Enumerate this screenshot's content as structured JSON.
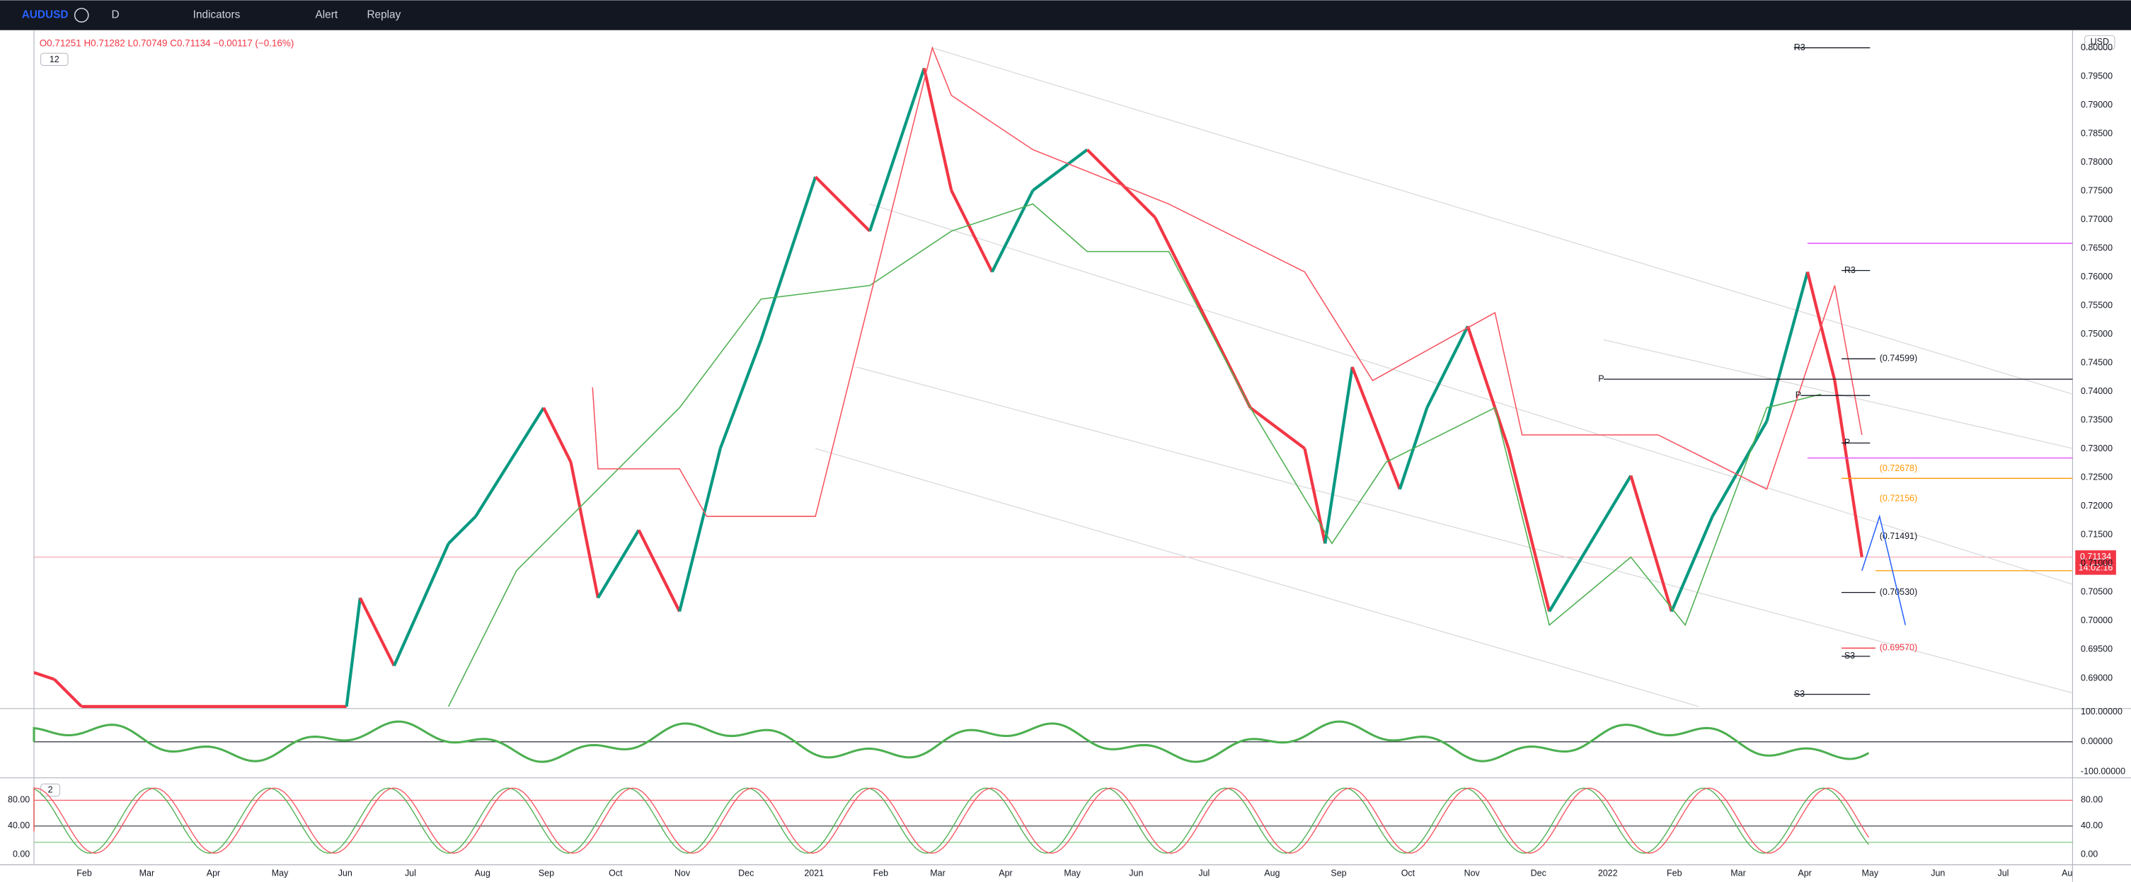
{
  "toolbar": {
    "symbol": "AUDUSD",
    "interval": "D",
    "indicators": "Indicators",
    "alert": "Alert",
    "replay": "Replay"
  },
  "legend": {
    "ohlc": "O0.71251 H0.71282 L0.70749 C0.71134 −0.00117 (−0.16%)",
    "indicator_count": "12"
  },
  "price_axis": {
    "currency": "USD",
    "labels": [
      "0.80000",
      "0.79500",
      "0.79000",
      "0.78500",
      "0.78000",
      "0.77500",
      "0.77000",
      "0.76500",
      "0.76000",
      "0.75500",
      "0.75000",
      "0.74500",
      "0.74000",
      "0.73500",
      "0.73000",
      "0.72500",
      "0.72000",
      "0.71500",
      "0.71000",
      "0.70500",
      "0.70000",
      "0.69500",
      "0.69000"
    ],
    "last_price": "0.71134",
    "countdown": "14:02:16"
  },
  "levels": {
    "pivots": [
      "R3",
      "R3",
      "P",
      "P",
      "P",
      "S3",
      "S3"
    ],
    "prices": [
      "(0.74599)",
      "(0.72678)",
      "(0.72156)",
      "(0.71491)",
      "(0.70530)",
      "(0.69570)"
    ]
  },
  "panel1": {
    "labels": [
      "100.00000",
      "0.00000",
      "-100.00000"
    ]
  },
  "panel2": {
    "badge": "2",
    "labels": [
      "80.00",
      "40.00",
      "0.00"
    ]
  },
  "time_axis": {
    "labels": [
      "Feb",
      "Mar",
      "Apr",
      "May",
      "Jun",
      "Jul",
      "Aug",
      "Sep",
      "Oct",
      "Nov",
      "Dec",
      "2021",
      "Feb",
      "Mar",
      "Apr",
      "May",
      "Jun",
      "Jul",
      "Aug",
      "Sep",
      "Oct",
      "Nov",
      "Dec",
      "2022",
      "Feb",
      "Mar",
      "Apr",
      "May",
      "Jun",
      "Jul",
      "Au"
    ]
  }
}
